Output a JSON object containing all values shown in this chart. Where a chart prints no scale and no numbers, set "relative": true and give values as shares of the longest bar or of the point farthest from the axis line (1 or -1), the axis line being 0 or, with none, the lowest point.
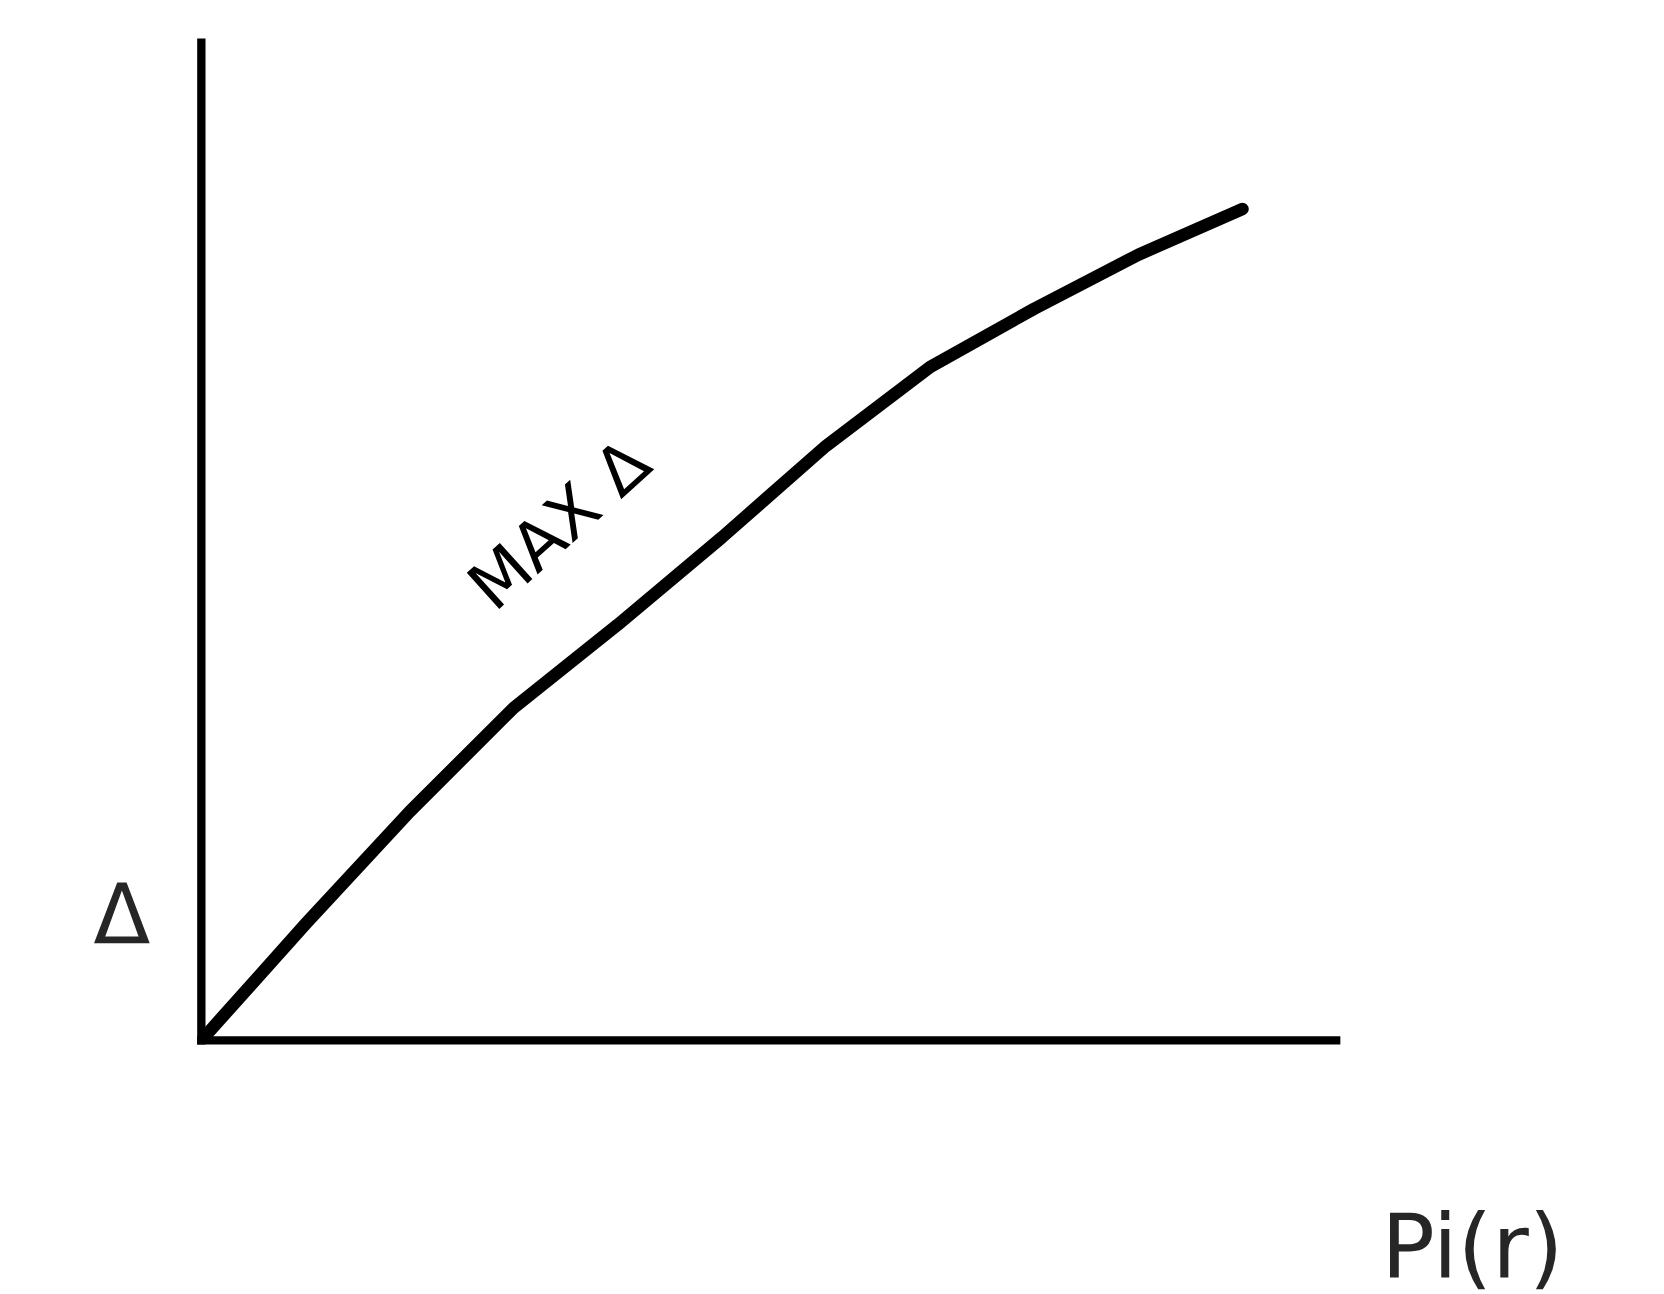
{
  "chart_data": {
    "type": "line",
    "xlabel": "Pi(r)",
    "ylabel": "Δ",
    "relative": true,
    "categories": [
      null,
      null,
      null,
      null,
      null,
      null,
      null,
      null,
      null,
      null,
      null
    ],
    "series": [
      {
        "name": "MAX Δ",
        "color": "#000000",
        "values": [
          0,
          0.14,
          0.275,
          0.4,
          0.5,
          0.605,
          0.715,
          0.81,
          0.88,
          0.945,
          1.0
        ]
      }
    ],
    "grid": false,
    "legend": false,
    "line_style": "solid"
  }
}
